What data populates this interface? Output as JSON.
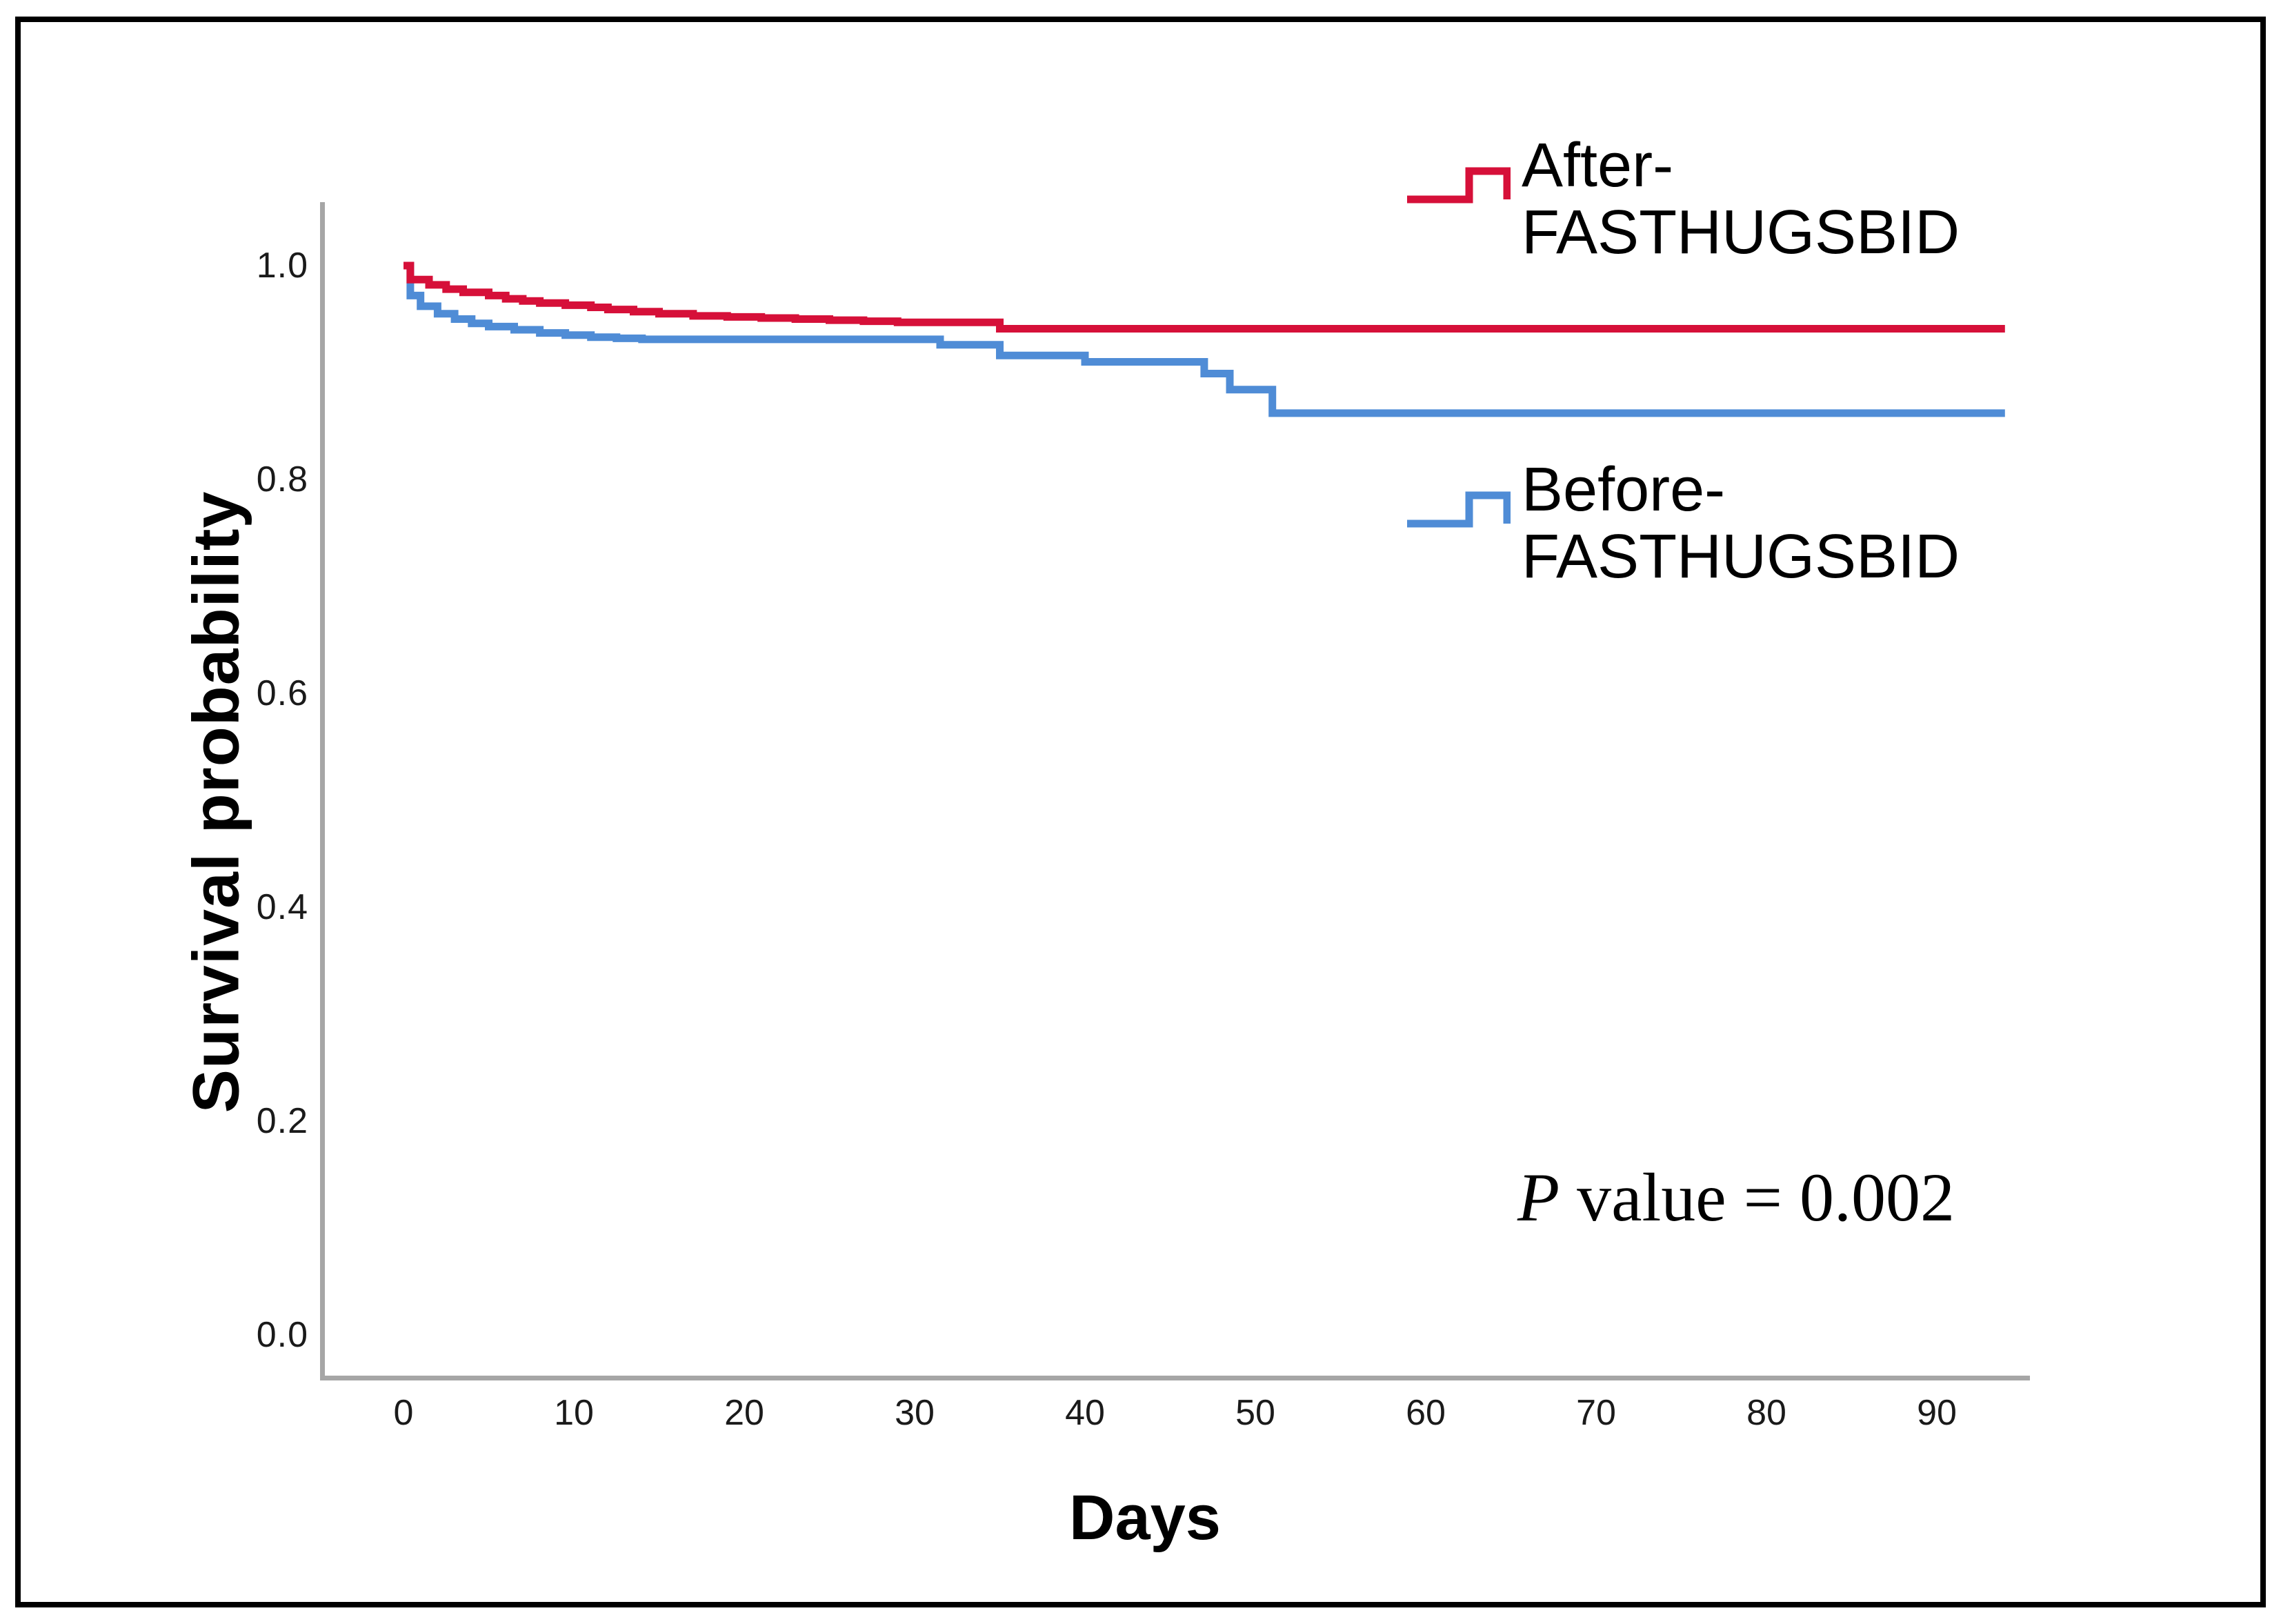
{
  "figure": {
    "background": "#ffffff",
    "border_color": "#000000",
    "axis_color": "#a6a6a6",
    "text_color": "#000000"
  },
  "chart_data": {
    "type": "line",
    "subtype": "step-survival",
    "title": "",
    "xlabel": "Days",
    "ylabel": "Survival probability",
    "xlim": [
      0,
      94
    ],
    "ylim": [
      0.0,
      1.0
    ],
    "grid": false,
    "legend_position": "right-top-inside",
    "x_ticks": [
      "0",
      "10",
      "20",
      "30",
      "40",
      "50",
      "60",
      "70",
      "80",
      "90"
    ],
    "y_ticks": [
      "1.0",
      "0.8",
      "0.6",
      "0.4",
      "0.2",
      "0.0"
    ],
    "annotation": "P value = 0.002",
    "series": [
      {
        "name": "After-FASTHUGSBID",
        "color": "#d61039",
        "points": [
          [
            0,
            1.0
          ],
          [
            0.4,
            0.987
          ],
          [
            1.5,
            0.982
          ],
          [
            2.5,
            0.978
          ],
          [
            3.5,
            0.975
          ],
          [
            5,
            0.972
          ],
          [
            6,
            0.969
          ],
          [
            7,
            0.967
          ],
          [
            8,
            0.965
          ],
          [
            9.5,
            0.963
          ],
          [
            11,
            0.961
          ],
          [
            12,
            0.959
          ],
          [
            13.5,
            0.957
          ],
          [
            15,
            0.955
          ],
          [
            17,
            0.953
          ],
          [
            19,
            0.952
          ],
          [
            21,
            0.951
          ],
          [
            23,
            0.95
          ],
          [
            25,
            0.949
          ],
          [
            27,
            0.948
          ],
          [
            29,
            0.947
          ],
          [
            35,
            0.941
          ],
          [
            94,
            0.941
          ]
        ]
      },
      {
        "name": "Before-FASTHUGSBID",
        "color": "#4f8cd6",
        "points": [
          [
            0,
            1.0
          ],
          [
            0.4,
            0.972
          ],
          [
            1,
            0.962
          ],
          [
            2,
            0.955
          ],
          [
            3,
            0.95
          ],
          [
            4,
            0.946
          ],
          [
            5,
            0.943
          ],
          [
            6.5,
            0.94
          ],
          [
            8,
            0.937
          ],
          [
            9.5,
            0.935
          ],
          [
            11,
            0.933
          ],
          [
            12.5,
            0.932
          ],
          [
            14,
            0.931
          ],
          [
            31.5,
            0.926
          ],
          [
            35,
            0.916
          ],
          [
            40,
            0.91
          ],
          [
            47,
            0.899
          ],
          [
            48.5,
            0.884
          ],
          [
            51,
            0.862
          ],
          [
            94,
            0.862
          ]
        ]
      }
    ]
  },
  "labels": {
    "y_axis_title": "Survival probability",
    "x_axis_title": "Days",
    "p_italic": "P",
    "p_rest": " value = 0.002"
  },
  "legend": {
    "after": {
      "line1": "After-",
      "line2": "FASTHUGSBID",
      "color": "#d61039"
    },
    "before": {
      "line1": "Before-",
      "line2": "FASTHUGSBID",
      "color": "#4f8cd6"
    }
  }
}
